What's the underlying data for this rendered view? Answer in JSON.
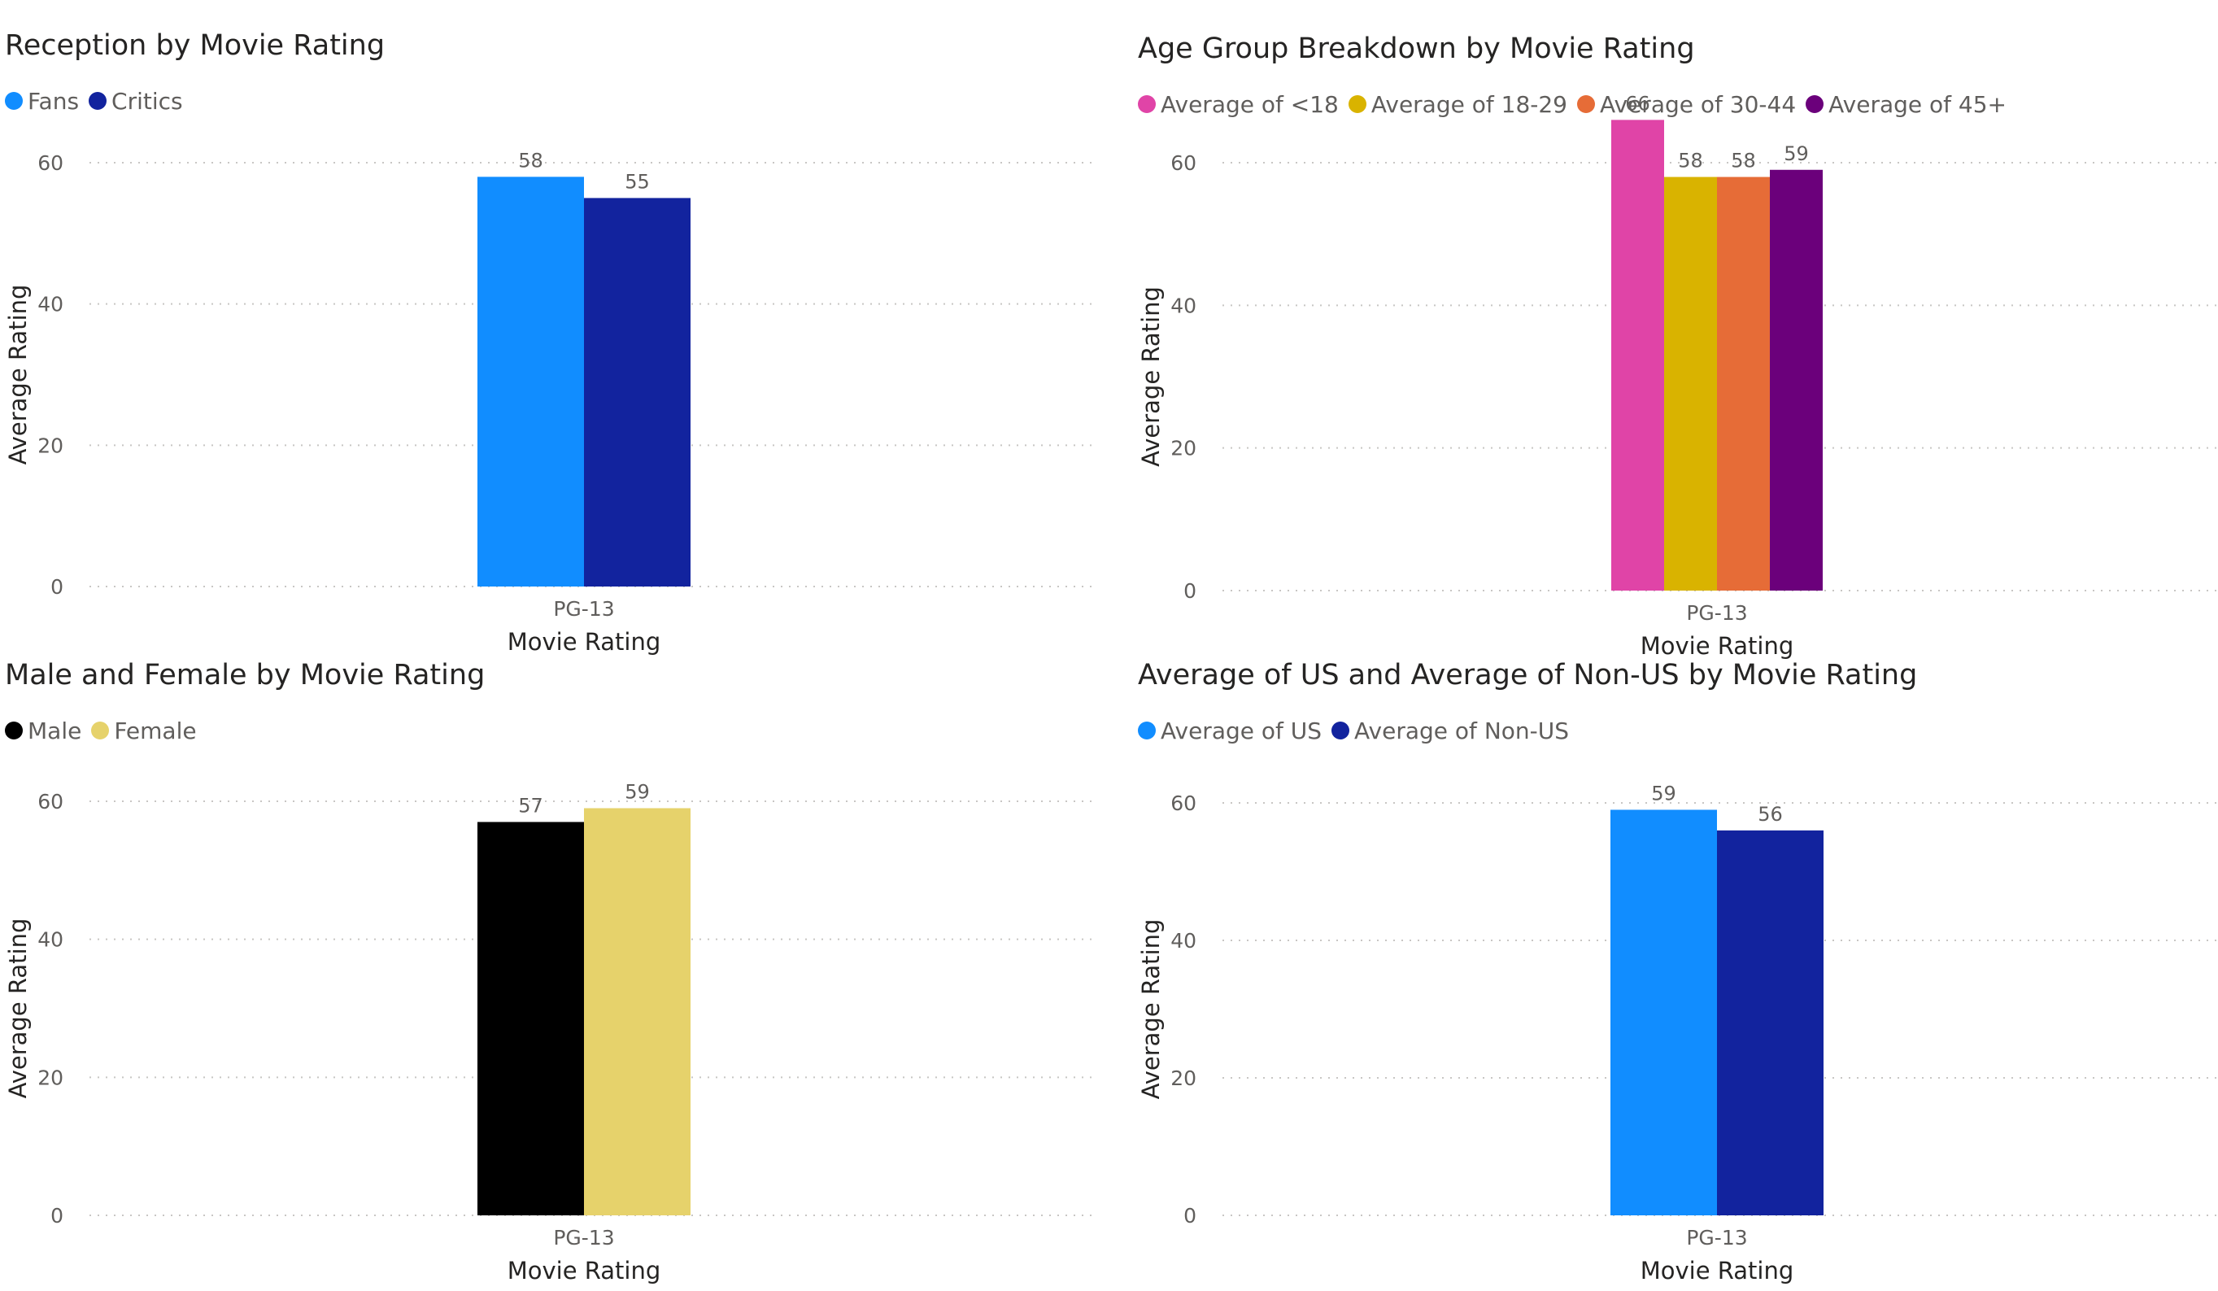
{
  "chart_data": [
    {
      "type": "bar",
      "title": "Reception by Movie Rating",
      "categories": [
        "PG-13"
      ],
      "series": [
        {
          "name": "Fans",
          "values": [
            58
          ],
          "color": "#118DFF"
        },
        {
          "name": "Critics",
          "values": [
            55
          ],
          "color": "#12239E"
        }
      ],
      "xlabel": "Movie Rating",
      "ylabel": "Average Rating",
      "ylim": [
        0,
        60
      ],
      "yticks": [
        0,
        20,
        40,
        60
      ],
      "grid": true,
      "legend": "top-left"
    },
    {
      "type": "bar",
      "title": "Age Group Breakdown by Movie Rating",
      "categories": [
        "PG-13"
      ],
      "series": [
        {
          "name": "Average of <18",
          "values": [
            66
          ],
          "color": "#E044A7"
        },
        {
          "name": "Average of 18-29",
          "values": [
            58
          ],
          "color": "#D9B300"
        },
        {
          "name": "Average of 30-44",
          "values": [
            58
          ],
          "color": "#E66C37"
        },
        {
          "name": "Average of 45+",
          "values": [
            59
          ],
          "color": "#6B007B"
        }
      ],
      "xlabel": "Movie Rating",
      "ylabel": "Average Rating",
      "ylim": [
        0,
        60
      ],
      "yticks": [
        0,
        20,
        40,
        60
      ],
      "grid": true,
      "legend": "top-left"
    },
    {
      "type": "bar",
      "title": "Male and Female by Movie Rating",
      "categories": [
        "PG-13"
      ],
      "series": [
        {
          "name": "Male",
          "values": [
            57
          ],
          "color": "#000000"
        },
        {
          "name": "Female",
          "values": [
            59
          ],
          "color": "#E6D26B"
        }
      ],
      "xlabel": "Movie Rating",
      "ylabel": "Average Rating",
      "ylim": [
        0,
        60
      ],
      "yticks": [
        0,
        20,
        40,
        60
      ],
      "grid": true,
      "legend": "top-left"
    },
    {
      "type": "bar",
      "title": "Average of US and Average of Non-US by Movie Rating",
      "categories": [
        "PG-13"
      ],
      "series": [
        {
          "name": "Average of US",
          "values": [
            59
          ],
          "color": "#118DFF"
        },
        {
          "name": "Average of Non-US",
          "values": [
            56
          ],
          "color": "#12239E"
        }
      ],
      "xlabel": "Movie Rating",
      "ylabel": "Average Rating",
      "ylim": [
        0,
        60
      ],
      "yticks": [
        0,
        20,
        40,
        60
      ],
      "grid": true,
      "legend": "top-left"
    }
  ]
}
